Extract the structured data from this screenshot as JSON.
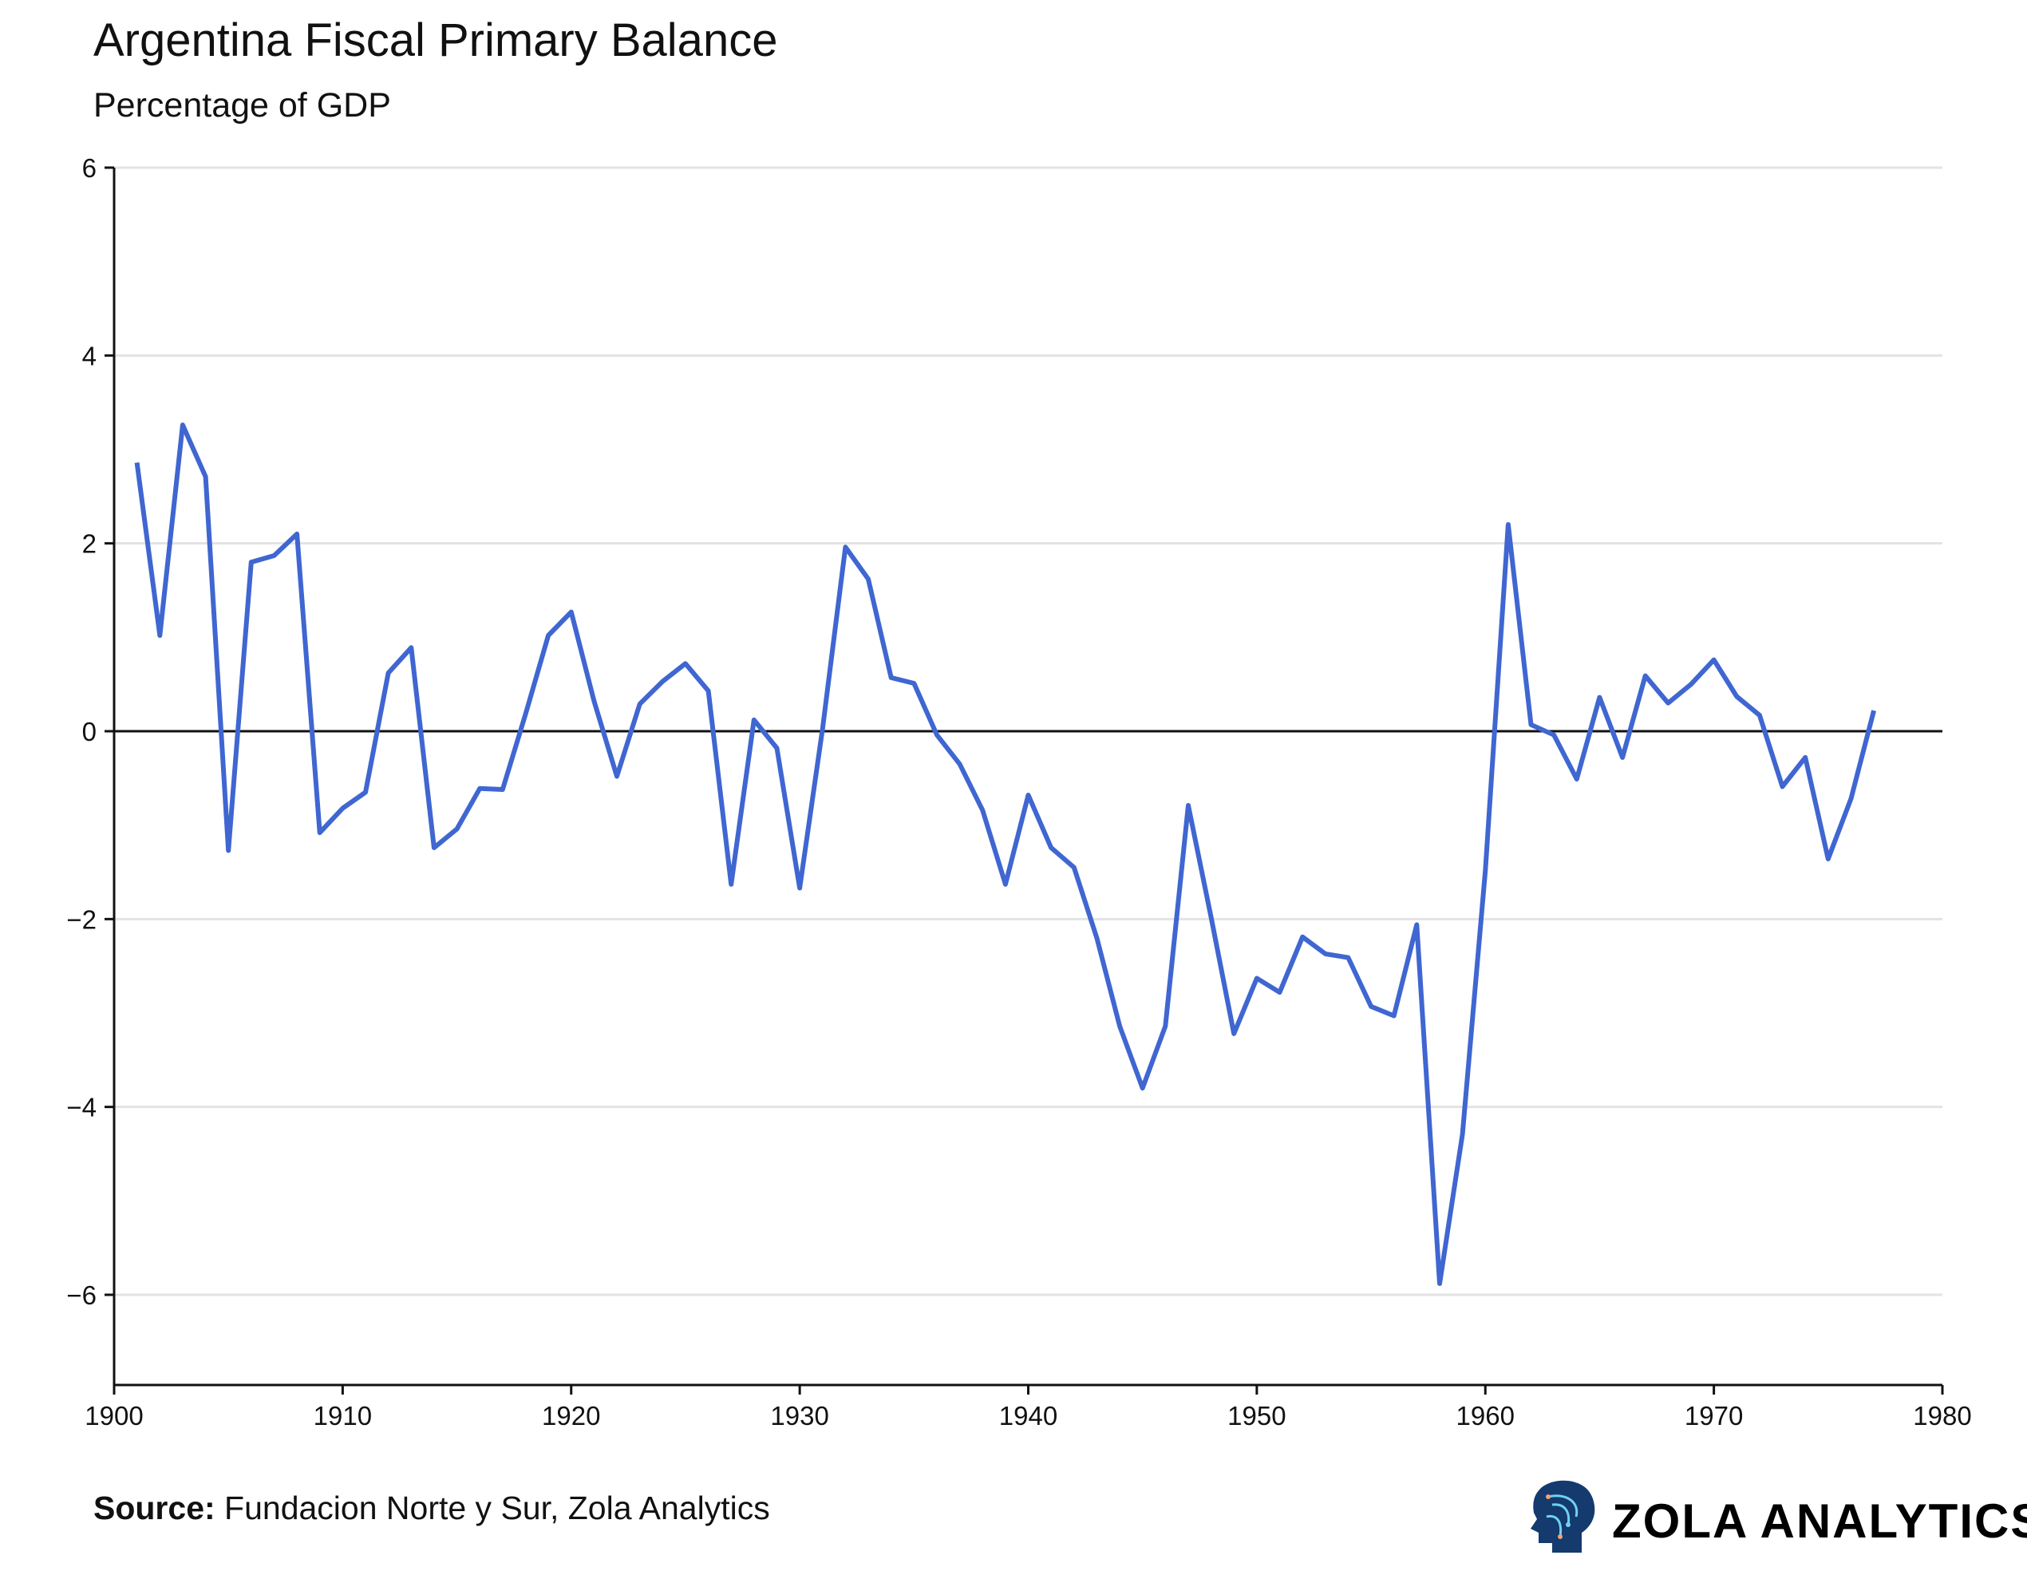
{
  "header": {
    "title": "Argentina Fiscal Primary Balance",
    "subtitle": "Percentage of GDP"
  },
  "footer": {
    "source_label": "Source:",
    "source_text": " Fundacion Norte y Sur, Zola Analytics",
    "brand": "ZOLA ANALYTICS",
    "logo_icon": "head-circuit-icon"
  },
  "chart_data": {
    "type": "line",
    "title": "Argentina Fiscal Primary Balance",
    "subtitle": "Percentage of GDP",
    "xlabel": "",
    "ylabel": "",
    "xlim": [
      1900,
      1980
    ],
    "ylim": [
      -7,
      6
    ],
    "xticks": [
      1900,
      1910,
      1920,
      1930,
      1940,
      1950,
      1960,
      1970,
      1980
    ],
    "yticks": [
      6,
      4,
      2,
      0,
      -2,
      -4,
      -6
    ],
    "ytick_labels": [
      "6",
      "4",
      "2",
      "0",
      "−2",
      "−4",
      "−6"
    ],
    "grid": "horizontal",
    "zero_line": true,
    "line_color": "#3f66d1",
    "x": [
      1901,
      1902,
      1903,
      1904,
      1905,
      1906,
      1907,
      1908,
      1909,
      1910,
      1911,
      1912,
      1913,
      1914,
      1915,
      1916,
      1917,
      1918,
      1919,
      1920,
      1921,
      1922,
      1923,
      1924,
      1925,
      1926,
      1927,
      1928,
      1929,
      1930,
      1931,
      1932,
      1933,
      1934,
      1935,
      1936,
      1937,
      1938,
      1939,
      1940,
      1941,
      1942,
      1943,
      1944,
      1945,
      1946,
      1947,
      1948,
      1949,
      1950,
      1951,
      1952,
      1953,
      1954,
      1955,
      1956,
      1957,
      1958,
      1959,
      1960,
      1961,
      1962,
      1963,
      1964,
      1965,
      1966,
      1967,
      1968,
      1969,
      1970,
      1971,
      1972,
      1973,
      1974,
      1975,
      1976,
      1977
    ],
    "y": [
      2.86,
      1.02,
      3.26,
      2.71,
      -1.27,
      1.8,
      1.87,
      2.1,
      -1.08,
      -0.82,
      -0.65,
      0.62,
      0.89,
      -1.24,
      -1.04,
      -0.61,
      -0.62,
      0.18,
      1.02,
      1.27,
      0.32,
      -0.48,
      0.29,
      0.53,
      0.72,
      0.43,
      -1.63,
      0.12,
      -0.18,
      -1.67,
      0.03,
      1.96,
      1.62,
      0.57,
      0.51,
      -0.04,
      -0.35,
      -0.84,
      -1.63,
      -0.68,
      -1.24,
      -1.45,
      -2.2,
      -3.14,
      -3.8,
      -3.14,
      -0.79,
      -1.98,
      -3.22,
      -2.63,
      -2.78,
      -2.19,
      -2.37,
      -2.41,
      -2.93,
      -3.03,
      -2.06,
      -5.88,
      -4.29,
      -1.48,
      2.2,
      0.07,
      -0.04,
      -0.51,
      0.36,
      -0.28,
      0.59,
      0.3,
      0.5,
      0.76,
      0.37,
      0.17,
      -0.59,
      -0.28,
      -1.36,
      -0.72,
      0.22
    ]
  }
}
